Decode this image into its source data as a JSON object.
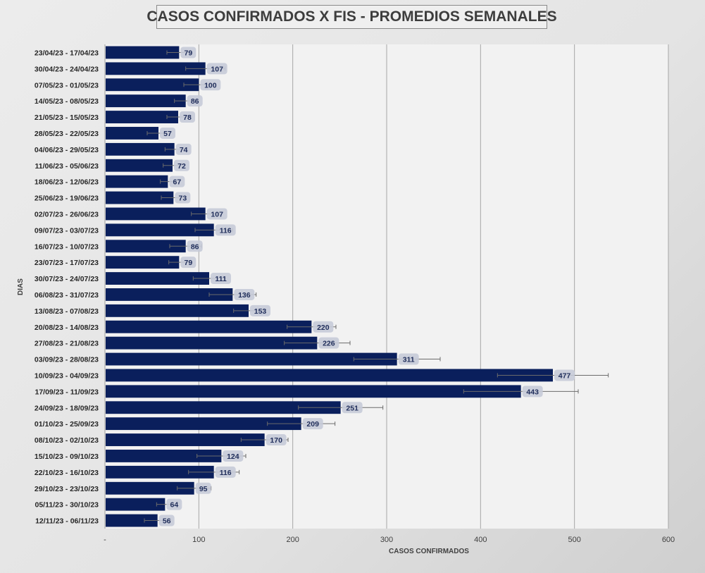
{
  "chart_data": {
    "type": "bar",
    "orientation": "horizontal",
    "title": "CASOS CONFIRMADOS X FIS - PROMEDIOS SEMANALES",
    "xlabel": "CASOS CONFIRMADOS",
    "ylabel": "DIAS",
    "xlim": [
      0,
      600
    ],
    "xticks": [
      "-",
      "100",
      "200",
      "300",
      "400",
      "500",
      "600"
    ],
    "grid": true,
    "bar_color": "#0a1f5c",
    "error_bars": true,
    "categories": [
      "23/04/23 - 17/04/23",
      "30/04/23 - 24/04/23",
      "07/05/23 - 01/05/23",
      "14/05/23 - 08/05/23",
      "21/05/23 - 15/05/23",
      "28/05/23 - 22/05/23",
      "04/06/23 - 29/05/23",
      "11/06/23 - 05/06/23",
      "18/06/23 - 12/06/23",
      "25/06/23 - 19/06/23",
      "02/07/23 - 26/06/23",
      "09/07/23 - 03/07/23",
      "16/07/23 - 10/07/23",
      "23/07/23 - 17/07/23",
      "30/07/23 - 24/07/23",
      "06/08/23 - 31/07/23",
      "13/08/23 - 07/08/23",
      "20/08/23 - 14/08/23",
      "27/08/23 - 21/08/23",
      "03/09/23 - 28/08/23",
      "10/09/23 - 04/09/23",
      "17/09/23 - 11/09/23",
      "24/09/23 - 18/09/23",
      "01/10/23 - 25/09/23",
      "08/10/23 - 02/10/23",
      "15/10/23 - 09/10/23",
      "22/10/23 - 16/10/23",
      "29/10/23 - 23/10/23",
      "05/11/23 - 30/10/23",
      "12/11/23 - 06/11/23"
    ],
    "values": [
      79,
      107,
      100,
      86,
      78,
      57,
      74,
      72,
      67,
      73,
      107,
      116,
      86,
      79,
      111,
      136,
      153,
      220,
      226,
      311,
      477,
      443,
      251,
      209,
      170,
      124,
      116,
      95,
      64,
      56
    ],
    "error_low": [
      66,
      86,
      84,
      74,
      66,
      45,
      64,
      62,
      59,
      60,
      92,
      96,
      69,
      68,
      94,
      111,
      137,
      194,
      191,
      265,
      418,
      382,
      206,
      173,
      145,
      98,
      89,
      77,
      55,
      42
    ],
    "error_high": [
      92,
      128,
      116,
      98,
      90,
      69,
      84,
      82,
      75,
      86,
      122,
      136,
      103,
      90,
      128,
      161,
      169,
      246,
      261,
      357,
      536,
      504,
      296,
      245,
      195,
      150,
      143,
      113,
      73,
      70
    ]
  }
}
